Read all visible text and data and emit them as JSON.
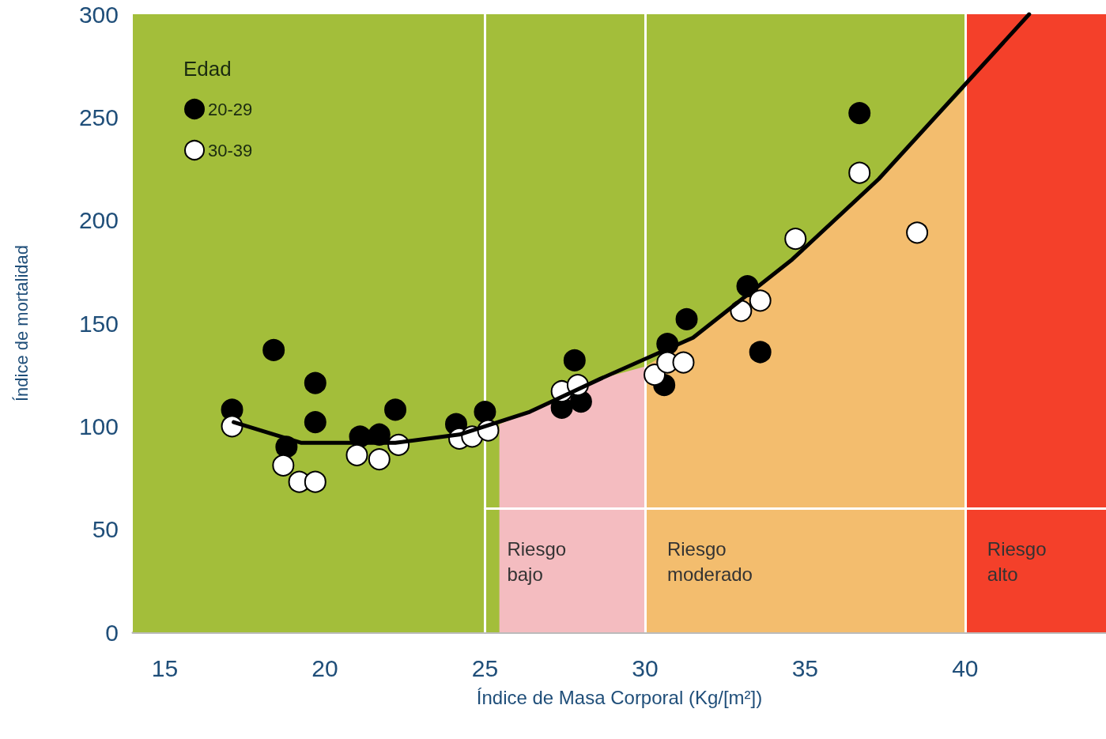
{
  "chart_data": {
    "type": "scatter",
    "xlabel": "Índice de Masa Corporal (Kg/[m²])",
    "ylabel": "Índice de mortalidad",
    "legend_title": "Edad",
    "legend": "top left",
    "xlim": [
      14,
      44.4
    ],
    "xticks": [
      15,
      20,
      25,
      30,
      35,
      40
    ],
    "ylim": [
      0,
      300
    ],
    "yticks": [
      0,
      50,
      100,
      150,
      200,
      250,
      300
    ],
    "bands": [
      {
        "axis": "x",
        "from": 14,
        "to": 40,
        "color": "#a3be3a"
      },
      {
        "axis": "x",
        "from": 40,
        "to": 44.4,
        "color": "#f4402a"
      }
    ],
    "ref_lines": [
      {
        "axis": "x",
        "value": 25,
        "color": "#ffffff"
      },
      {
        "axis": "x",
        "value": 30,
        "color": "#ffffff"
      },
      {
        "axis": "x",
        "value": 40,
        "color": "#ffffff"
      }
    ],
    "annotations": [
      "Riesgo bajo",
      "Riesgo moderado",
      "Riesgo alto"
    ],
    "series": [
      {
        "type": "area",
        "color": "#f4bcc0",
        "x": [
          25.45,
          26.4,
          28.6,
          30
        ],
        "values": [
          101,
          107,
          123,
          129
        ]
      },
      {
        "type": "area",
        "color": "#f3bd6e",
        "x": [
          30,
          31.5,
          34.6,
          37.3,
          40
        ],
        "values": [
          129,
          143,
          181,
          220,
          264
        ]
      },
      {
        "type": "line",
        "color": "#ffffff",
        "marker": "none",
        "x": [
          25,
          44.4
        ],
        "values": [
          60,
          60
        ]
      },
      {
        "type": "line",
        "color": "#000000",
        "marker": "none",
        "x": [
          17.15,
          19.25,
          22.2,
          24.2,
          26.4,
          28.6,
          31.5,
          34.6,
          37.3,
          42
        ],
        "values": [
          102,
          92,
          92,
          96,
          107,
          123,
          143,
          181,
          220,
          300
        ]
      },
      {
        "name": "20-29",
        "color": "#000000",
        "marker": "circle",
        "x": [
          17.1,
          18.4,
          18.8,
          19.7,
          19.7,
          21.1,
          21.7,
          22.2,
          24.1,
          24.6,
          25.0,
          27.4,
          27.8,
          28.0,
          30.6,
          30.7,
          31.3,
          33.2,
          33.6,
          36.7
        ],
        "values": [
          108,
          137,
          90,
          121,
          102,
          95,
          96,
          108,
          101,
          null,
          107,
          109,
          132,
          112,
          120,
          140,
          152,
          168,
          136,
          252
        ]
      },
      {
        "name": "30-39",
        "color": "#ffffff",
        "marker": "circle",
        "x": [
          17.1,
          18.7,
          19.2,
          19.7,
          21.0,
          21.7,
          22.3,
          24.2,
          24.6,
          25.1,
          27.4,
          27.9,
          30.3,
          30.7,
          31.2,
          33.0,
          33.6,
          34.7,
          36.7,
          38.5
        ],
        "values": [
          100,
          81,
          73,
          73,
          86,
          84,
          91,
          94,
          95,
          98,
          117,
          120,
          125,
          131,
          131,
          156,
          161,
          191,
          223,
          194
        ]
      }
    ]
  }
}
